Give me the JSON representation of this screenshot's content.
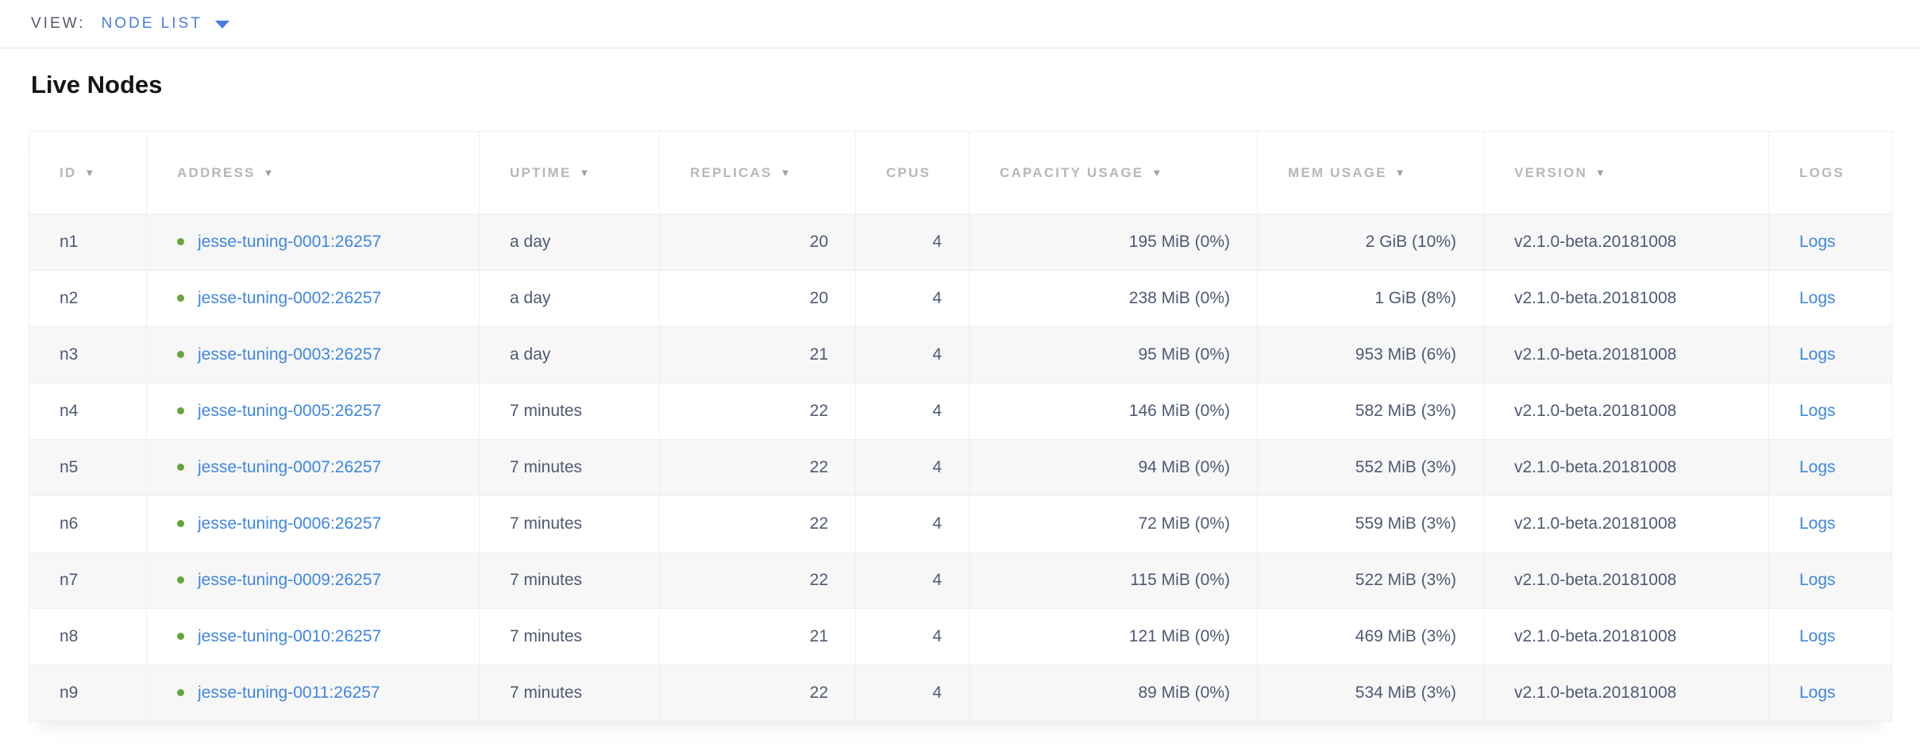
{
  "view_bar": {
    "label": "VIEW:",
    "selected": "NODE LIST"
  },
  "page": {
    "title": "Live Nodes"
  },
  "table": {
    "columns": [
      {
        "key": "id",
        "label": "ID",
        "sortable": true,
        "align": "left"
      },
      {
        "key": "address",
        "label": "ADDRESS",
        "sortable": true,
        "align": "left"
      },
      {
        "key": "uptime",
        "label": "UPTIME",
        "sortable": true,
        "align": "left"
      },
      {
        "key": "replicas",
        "label": "REPLICAS",
        "sortable": true,
        "align": "right"
      },
      {
        "key": "cpus",
        "label": "CPUS",
        "sortable": false,
        "align": "right"
      },
      {
        "key": "capacity",
        "label": "CAPACITY USAGE",
        "sortable": true,
        "align": "right"
      },
      {
        "key": "mem",
        "label": "MEM USAGE",
        "sortable": true,
        "align": "right"
      },
      {
        "key": "version",
        "label": "VERSION",
        "sortable": true,
        "align": "left"
      },
      {
        "key": "logs",
        "label": "LOGS",
        "sortable": false,
        "align": "left"
      }
    ],
    "rows": [
      {
        "id": "n1",
        "address": "jesse-tuning-0001:26257",
        "status": "live",
        "uptime": "a day",
        "replicas": "20",
        "cpus": "4",
        "capacity": "195 MiB (0%)",
        "mem": "2 GiB (10%)",
        "version": "v2.1.0-beta.20181008",
        "logs": "Logs"
      },
      {
        "id": "n2",
        "address": "jesse-tuning-0002:26257",
        "status": "live",
        "uptime": "a day",
        "replicas": "20",
        "cpus": "4",
        "capacity": "238 MiB (0%)",
        "mem": "1 GiB (8%)",
        "version": "v2.1.0-beta.20181008",
        "logs": "Logs"
      },
      {
        "id": "n3",
        "address": "jesse-tuning-0003:26257",
        "status": "live",
        "uptime": "a day",
        "replicas": "21",
        "cpus": "4",
        "capacity": "95 MiB (0%)",
        "mem": "953 MiB (6%)",
        "version": "v2.1.0-beta.20181008",
        "logs": "Logs"
      },
      {
        "id": "n4",
        "address": "jesse-tuning-0005:26257",
        "status": "live",
        "uptime": "7 minutes",
        "replicas": "22",
        "cpus": "4",
        "capacity": "146 MiB (0%)",
        "mem": "582 MiB (3%)",
        "version": "v2.1.0-beta.20181008",
        "logs": "Logs"
      },
      {
        "id": "n5",
        "address": "jesse-tuning-0007:26257",
        "status": "live",
        "uptime": "7 minutes",
        "replicas": "22",
        "cpus": "4",
        "capacity": "94 MiB (0%)",
        "mem": "552 MiB (3%)",
        "version": "v2.1.0-beta.20181008",
        "logs": "Logs"
      },
      {
        "id": "n6",
        "address": "jesse-tuning-0006:26257",
        "status": "live",
        "uptime": "7 minutes",
        "replicas": "22",
        "cpus": "4",
        "capacity": "72 MiB (0%)",
        "mem": "559 MiB (3%)",
        "version": "v2.1.0-beta.20181008",
        "logs": "Logs"
      },
      {
        "id": "n7",
        "address": "jesse-tuning-0009:26257",
        "status": "live",
        "uptime": "7 minutes",
        "replicas": "22",
        "cpus": "4",
        "capacity": "115 MiB (0%)",
        "mem": "522 MiB (3%)",
        "version": "v2.1.0-beta.20181008",
        "logs": "Logs"
      },
      {
        "id": "n8",
        "address": "jesse-tuning-0010:26257",
        "status": "live",
        "uptime": "7 minutes",
        "replicas": "21",
        "cpus": "4",
        "capacity": "121 MiB (0%)",
        "mem": "469 MiB (3%)",
        "version": "v2.1.0-beta.20181008",
        "logs": "Logs"
      },
      {
        "id": "n9",
        "address": "jesse-tuning-0011:26257",
        "status": "live",
        "uptime": "7 minutes",
        "replicas": "22",
        "cpus": "4",
        "capacity": "89 MiB (0%)",
        "mem": "534 MiB (3%)",
        "version": "v2.1.0-beta.20181008",
        "logs": "Logs"
      }
    ]
  },
  "colors": {
    "accent_blue": "#4a7de2",
    "link_blue": "#3f86df",
    "live_green": "#67a33c",
    "header_gray": "#b5b7bb",
    "text_dark": "#4e5a72",
    "stripe_gray": "#f7f7f8"
  },
  "icons": {
    "view_dropdown": "chevron-down-icon",
    "sortable_column": "sort-desc-icon",
    "node_status": "node-status-dot-icon"
  }
}
